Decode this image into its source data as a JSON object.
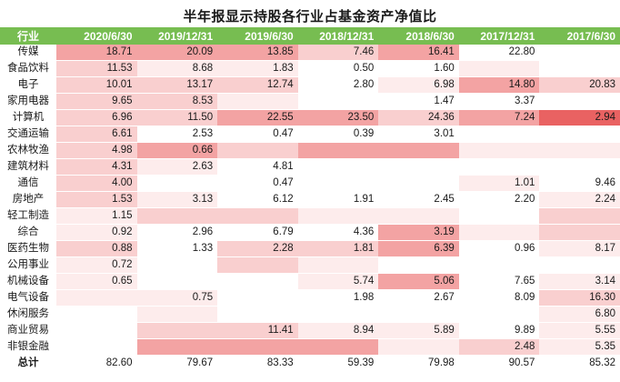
{
  "title_bar": {
    "title": "半年报显示持股各行业占基金资产净值比"
  },
  "colors": {
    "header_bg": "#77bd51",
    "header_text": "#ffffff",
    "heat_palette": [
      "transparent",
      "#fdecec",
      "#f9cfcf",
      "#f3a3a3",
      "#ee8585",
      "#e96262"
    ]
  },
  "chart_data": {
    "type": "table",
    "subtype": "heatmap-table",
    "title": "半年报显示持股各行业占基金资产净值比",
    "columns": [
      "行业",
      "2020/6/30",
      "2019/12/31",
      "2019/6/30",
      "2018/12/31",
      "2018/6/30",
      "2017/12/31",
      "2017/6/30"
    ],
    "value_unit": "percent of fund net asset value",
    "heat_note": "levels 0-5 map to colors.heat_palette, 0 = no fill, 5 = strongest red",
    "rows": [
      {
        "industry": "传媒",
        "values": [
          "18.71",
          "20.09",
          "13.85",
          "7.46",
          "16.41",
          "22.80",
          ""
        ],
        "levels": [
          3,
          3,
          3,
          2,
          3,
          0,
          0
        ]
      },
      {
        "industry": "食品饮料",
        "values": [
          "11.53",
          "8.68",
          "1.83",
          "0.50",
          "1.60",
          "",
          ""
        ],
        "levels": [
          2,
          1,
          1,
          0,
          0,
          1,
          0
        ]
      },
      {
        "industry": "电子",
        "values": [
          "10.01",
          "13.17",
          "12.74",
          "2.80",
          "6.98",
          "14.80",
          "20.83"
        ],
        "levels": [
          2,
          2,
          2,
          0,
          1,
          3,
          2
        ]
      },
      {
        "industry": "家用电器",
        "values": [
          "9.65",
          "8.53",
          "",
          "",
          "1.47",
          "3.37",
          ""
        ],
        "levels": [
          2,
          2,
          1,
          0,
          0,
          0,
          0
        ]
      },
      {
        "industry": "计算机",
        "values": [
          "6.96",
          "11.50",
          "22.55",
          "23.50",
          "24.36",
          "7.24",
          "2.94"
        ],
        "levels": [
          2,
          2,
          3,
          3,
          2,
          3,
          5
        ]
      },
      {
        "industry": "交通运输",
        "values": [
          "6.61",
          "2.53",
          "0.47",
          "0.39",
          "3.01",
          "",
          ""
        ],
        "levels": [
          2,
          0,
          0,
          0,
          0,
          0,
          0
        ]
      },
      {
        "industry": "农林牧渔",
        "values": [
          "4.98",
          "0.66",
          "",
          "",
          "",
          "",
          ""
        ],
        "levels": [
          2,
          3,
          2,
          3,
          3,
          1,
          1
        ]
      },
      {
        "industry": "建筑材料",
        "values": [
          "4.31",
          "2.63",
          "4.81",
          "",
          "",
          "",
          ""
        ],
        "levels": [
          2,
          1,
          0,
          0,
          0,
          0,
          0
        ]
      },
      {
        "industry": "通信",
        "values": [
          "4.00",
          "",
          "0.47",
          "",
          "",
          "1.01",
          "9.46"
        ],
        "levels": [
          2,
          0,
          0,
          0,
          0,
          1,
          0
        ]
      },
      {
        "industry": "房地产",
        "values": [
          "1.53",
          "3.13",
          "6.12",
          "1.91",
          "2.45",
          "2.20",
          "2.24"
        ],
        "levels": [
          2,
          1,
          0,
          0,
          0,
          0,
          1
        ]
      },
      {
        "industry": "轻工制造",
        "values": [
          "1.15",
          "",
          "",
          "",
          "",
          "",
          ""
        ],
        "levels": [
          1,
          2,
          2,
          1,
          1,
          0,
          2
        ]
      },
      {
        "industry": "综合",
        "values": [
          "0.92",
          "2.96",
          "6.79",
          "4.36",
          "3.19",
          "",
          ""
        ],
        "levels": [
          1,
          0,
          0,
          0,
          3,
          1,
          2
        ]
      },
      {
        "industry": "医药生物",
        "values": [
          "0.88",
          "1.33",
          "2.28",
          "1.81",
          "6.39",
          "0.96",
          "8.17"
        ],
        "levels": [
          2,
          0,
          2,
          2,
          3,
          0,
          1
        ]
      },
      {
        "industry": "公用事业",
        "values": [
          "0.72",
          "",
          "",
          "",
          "",
          "",
          ""
        ],
        "levels": [
          1,
          0,
          2,
          1,
          0,
          0,
          0
        ]
      },
      {
        "industry": "机械设备",
        "values": [
          "0.65",
          "",
          "",
          "5.74",
          "5.06",
          "7.65",
          "3.14"
        ],
        "levels": [
          1,
          0,
          0,
          1,
          3,
          0,
          1
        ]
      },
      {
        "industry": "电气设备",
        "values": [
          "",
          "0.75",
          "",
          "1.98",
          "2.67",
          "8.09",
          "16.30"
        ],
        "levels": [
          1,
          1,
          0,
          0,
          0,
          0,
          2
        ]
      },
      {
        "industry": "休闲服务",
        "values": [
          "",
          "",
          "",
          "",
          "",
          "",
          "6.80"
        ],
        "levels": [
          0,
          1,
          0,
          0,
          0,
          0,
          1
        ]
      },
      {
        "industry": "商业贸易",
        "values": [
          "",
          "",
          "11.41",
          "8.94",
          "5.89",
          "9.89",
          "5.55"
        ],
        "levels": [
          0,
          2,
          2,
          1,
          1,
          0,
          1
        ]
      },
      {
        "industry": "非银金融",
        "values": [
          "",
          "",
          "",
          "",
          "",
          "2.48",
          "5.35"
        ],
        "levels": [
          0,
          3,
          3,
          3,
          1,
          2,
          1
        ]
      },
      {
        "industry": "总计",
        "values": [
          "82.60",
          "79.67",
          "83.33",
          "59.39",
          "79.98",
          "90.57",
          "85.32"
        ],
        "levels": [
          0,
          0,
          0,
          0,
          0,
          0,
          0
        ],
        "bold": true
      }
    ]
  }
}
